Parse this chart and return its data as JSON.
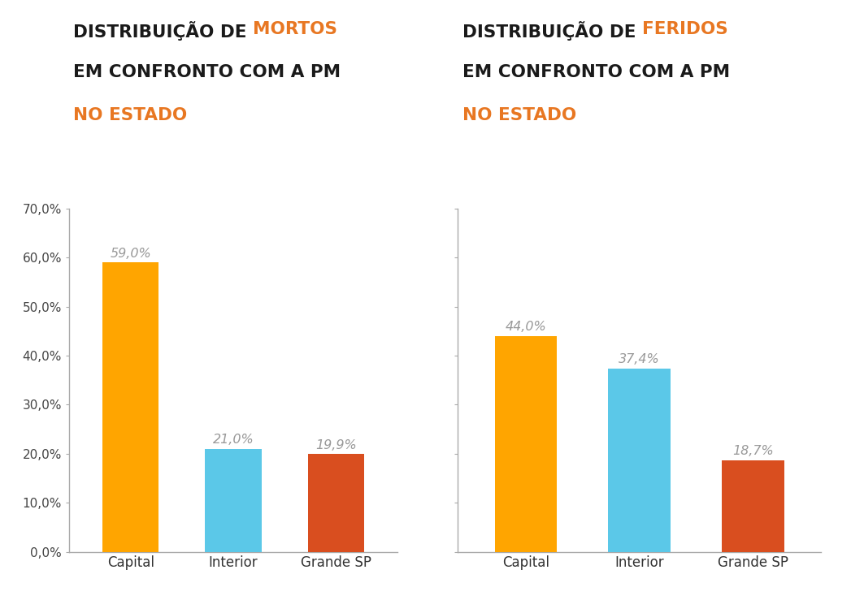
{
  "left_chart": {
    "categories": [
      "Capital",
      "Interior",
      "Grande SP"
    ],
    "values": [
      0.59,
      0.21,
      0.199
    ],
    "colors": [
      "#FFA500",
      "#5BC8E8",
      "#D94E1F"
    ],
    "labels": [
      "59,0%",
      "21,0%",
      "19,9%"
    ],
    "title_black1": "DISTRIBUIÇÃO DE ",
    "title_orange1": "MORTOS",
    "title_black2": "EM CONFRONTO COM A PM",
    "title_orange2": "NO ESTADO"
  },
  "right_chart": {
    "categories": [
      "Capital",
      "Interior",
      "Grande SP"
    ],
    "values": [
      0.44,
      0.374,
      0.187
    ],
    "colors": [
      "#FFA500",
      "#5BC8E8",
      "#D94E1F"
    ],
    "labels": [
      "44,0%",
      "37,4%",
      "18,7%"
    ],
    "title_black1": "DISTRIBUIÇÃO DE ",
    "title_orange1": "FERIDOS",
    "title_black2": "EM CONFRONTO COM A PM",
    "title_orange2": "NO ESTADO"
  },
  "ylim": [
    0,
    0.7
  ],
  "yticks": [
    0.0,
    0.1,
    0.2,
    0.3,
    0.4,
    0.5,
    0.6,
    0.7
  ],
  "ytick_labels": [
    "0,0%",
    "10,0%",
    "20,0%",
    "30,0%",
    "40,0%",
    "50,0%",
    "60,0%",
    "70,0%"
  ],
  "highlight_color": "#E87722",
  "title_color": "#1a1a1a",
  "label_color": "#999999",
  "bar_width": 0.55,
  "background_color": "#ffffff",
  "title_fontsize": 15.5,
  "label_fontsize": 11.5,
  "tick_fontsize": 11,
  "axis_line_color": "#aaaaaa"
}
